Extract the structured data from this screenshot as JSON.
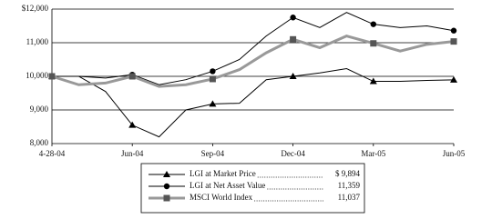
{
  "chart_data": {
    "type": "line",
    "categories": [
      "4-28-04",
      null,
      null,
      "Jun-04",
      null,
      null,
      "Sep-04",
      null,
      null,
      "Dec-04",
      null,
      null,
      "Mar-05",
      null,
      null,
      "Jun-05"
    ],
    "series": [
      {
        "name": "LGI at Market Price",
        "color": "#000000",
        "marker": "triangle",
        "line_width": 1,
        "values": [
          10000,
          10000,
          9550,
          8550,
          8200,
          9000,
          9180,
          9200,
          9900,
          10000,
          10100,
          10230,
          9850,
          9850,
          9880,
          9894
        ],
        "value_labels": [
          null,
          null,
          null,
          null,
          null,
          null,
          null,
          null,
          null,
          null,
          null,
          null,
          null,
          null,
          null,
          "$ 9,894"
        ]
      },
      {
        "name": "LGI at Net Asset Value",
        "color": "#000000",
        "marker": "circle",
        "line_width": 1,
        "values": [
          10000,
          10000,
          9950,
          10050,
          9750,
          9900,
          10150,
          10500,
          11200,
          11750,
          11450,
          11900,
          11550,
          11450,
          11500,
          11359
        ],
        "value_labels": [
          null,
          null,
          null,
          null,
          null,
          null,
          null,
          null,
          null,
          null,
          null,
          null,
          null,
          null,
          null,
          "11,359"
        ]
      },
      {
        "name": "MSCI World Index",
        "color": "#999999",
        "marker": "square",
        "line_width": 3,
        "values": [
          10000,
          9750,
          9800,
          10000,
          9700,
          9750,
          9920,
          10200,
          10700,
          11100,
          10850,
          11200,
          10980,
          10750,
          10950,
          11037
        ],
        "value_labels": [
          null,
          null,
          null,
          null,
          null,
          null,
          null,
          null,
          null,
          null,
          null,
          null,
          null,
          null,
          null,
          "11,037"
        ]
      }
    ],
    "ylim": [
      8000,
      12000
    ],
    "yticks": [
      {
        "value": 8000,
        "label": "8,000"
      },
      {
        "value": 9000,
        "label": "9,000"
      },
      {
        "value": 10000,
        "label": "10,000"
      },
      {
        "value": 11000,
        "label": "11,000"
      },
      {
        "value": 12000,
        "label": "$12,000"
      }
    ],
    "grid": true
  }
}
